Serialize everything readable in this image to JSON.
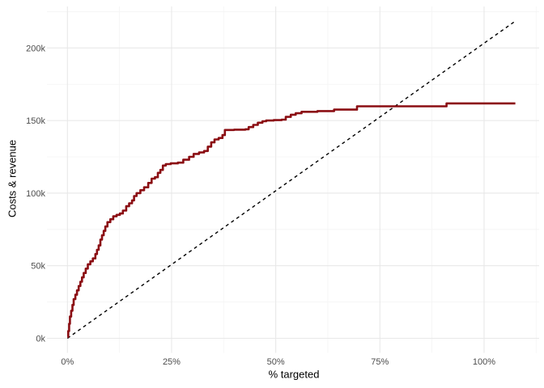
{
  "figure": {
    "background": "#FFFFFF"
  },
  "chart_data": {
    "type": "line",
    "title": "",
    "xlabel": "% targeted",
    "ylabel": "Costs & revenue",
    "x_unit": "percent_targeted",
    "y_unit": "thousands",
    "xlim": [
      -5.5,
      113.5
    ],
    "ylim": [
      -11,
      230
    ],
    "grid": "major-and-minor",
    "legend": "none",
    "x_major_ticks": [
      0,
      25,
      50,
      75,
      100
    ],
    "x_tick_labels": [
      "0%",
      "25%",
      "50%",
      "75%",
      "100%"
    ],
    "x_minor_ticks": [
      12.5,
      37.5,
      62.5,
      87.5,
      112.5
    ],
    "y_major_ticks": [
      0,
      50,
      100,
      150,
      200
    ],
    "y_tick_labels": [
      "0k",
      "50k",
      "100k",
      "150k",
      "200k"
    ],
    "y_minor_ticks": [
      25,
      75,
      125,
      175,
      225
    ],
    "series": [
      {
        "name": "cumulative-revenue-step-curve",
        "type": "step",
        "color": "#8B0E13",
        "stroke_width": 2.6,
        "points": [
          [
            0,
            1
          ],
          [
            0.2,
            5
          ],
          [
            0.4,
            10
          ],
          [
            0.6,
            15
          ],
          [
            0.9,
            19
          ],
          [
            1.2,
            23
          ],
          [
            1.5,
            27
          ],
          [
            1.9,
            30
          ],
          [
            2.3,
            33
          ],
          [
            2.7,
            36
          ],
          [
            3.1,
            39
          ],
          [
            3.5,
            42
          ],
          [
            3.9,
            45
          ],
          [
            4.4,
            48
          ],
          [
            4.9,
            51
          ],
          [
            5.5,
            53
          ],
          [
            6.1,
            55
          ],
          [
            6.7,
            58
          ],
          [
            7.1,
            61
          ],
          [
            7.5,
            64
          ],
          [
            7.9,
            68
          ],
          [
            8.3,
            71
          ],
          [
            8.7,
            74
          ],
          [
            9.1,
            77
          ],
          [
            9.6,
            80
          ],
          [
            10.3,
            82
          ],
          [
            11.0,
            84
          ],
          [
            11.8,
            85
          ],
          [
            12.6,
            86
          ],
          [
            13.3,
            88
          ],
          [
            14.1,
            91
          ],
          [
            14.8,
            93
          ],
          [
            15.5,
            95
          ],
          [
            16.0,
            98
          ],
          [
            16.6,
            100
          ],
          [
            17.5,
            102
          ],
          [
            18.4,
            104
          ],
          [
            19.4,
            107
          ],
          [
            20.2,
            110
          ],
          [
            21.0,
            111
          ],
          [
            21.7,
            114
          ],
          [
            22.3,
            116
          ],
          [
            22.9,
            119
          ],
          [
            23.6,
            120
          ],
          [
            24.8,
            120.5
          ],
          [
            26.5,
            121
          ],
          [
            27.8,
            123
          ],
          [
            29.2,
            125
          ],
          [
            30.3,
            127
          ],
          [
            31.6,
            128
          ],
          [
            32.8,
            129
          ],
          [
            33.7,
            132
          ],
          [
            34.5,
            135
          ],
          [
            35.3,
            137
          ],
          [
            36.3,
            138
          ],
          [
            37.2,
            140
          ],
          [
            37.8,
            143.5
          ],
          [
            40.0,
            143.7
          ],
          [
            42.7,
            144
          ],
          [
            43.5,
            145.5
          ],
          [
            44.6,
            147
          ],
          [
            45.7,
            148.5
          ],
          [
            46.8,
            149.5
          ],
          [
            47.7,
            150
          ],
          [
            49.5,
            150.3
          ],
          [
            51.4,
            150.6
          ],
          [
            52.4,
            152.5
          ],
          [
            53.6,
            154
          ],
          [
            54.8,
            155
          ],
          [
            56.2,
            156
          ],
          [
            60.0,
            156.5
          ],
          [
            64.0,
            157.5
          ],
          [
            69.5,
            159.8
          ],
          [
            91.0,
            161.8
          ],
          [
            107.5,
            161.8
          ]
        ]
      },
      {
        "name": "cost-breakeven-dashed-line",
        "type": "dashed-line",
        "color": "#000000",
        "stroke_width": 1.4,
        "dash": [
          4,
          4
        ],
        "points": [
          [
            0,
            0
          ],
          [
            107.5,
            218.5
          ]
        ]
      }
    ],
    "colors": {
      "panel_background": "#FFFFFF",
      "grid_major": "#E8E8E8",
      "grid_minor": "#F4F4F4",
      "tick_label": "#4D4D4D",
      "axis_title": "#000000"
    }
  }
}
